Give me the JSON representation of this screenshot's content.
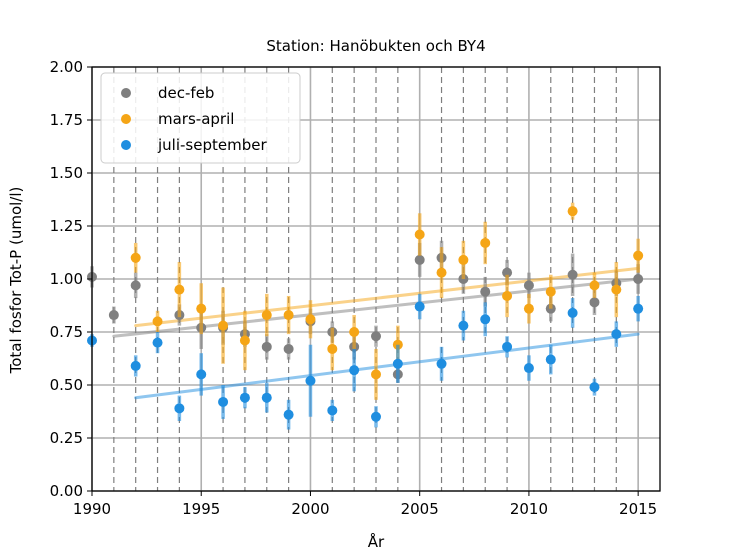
{
  "chart_data": {
    "type": "scatter",
    "title": "Station: Hanöbukten och BY4",
    "xlabel": "År",
    "ylabel": "Total fosfor Tot-P (umol/l)",
    "xlim": [
      1990,
      2016
    ],
    "ylim": [
      0,
      2.0
    ],
    "xticks": [
      1990,
      1995,
      2000,
      2005,
      2010,
      2015
    ],
    "yticks": [
      0.0,
      0.25,
      0.5,
      0.75,
      1.0,
      1.25,
      1.5,
      1.75,
      2.0
    ],
    "xtick_labels": [
      "1990",
      "1995",
      "2000",
      "2005",
      "2010",
      "2015"
    ],
    "ytick_labels": [
      "0.00",
      "0.25",
      "0.50",
      "0.75",
      "1.00",
      "1.25",
      "1.50",
      "1.75",
      "2.00"
    ],
    "vertical_dashed_years": [
      1991,
      1992,
      1993,
      1994,
      1996,
      1997,
      1998,
      1999,
      2001,
      2002,
      2003,
      2004,
      2006,
      2007,
      2008,
      2009,
      2011,
      2012,
      2013,
      2014
    ],
    "grid": true,
    "legend_position": "top-left",
    "series": [
      {
        "name": "dec-feb",
        "color": "#7f7f7f",
        "x": [
          1990,
          1991,
          1992,
          1994,
          1995,
          1996,
          1997,
          1998,
          1999,
          2000,
          2001,
          2002,
          2003,
          2004,
          2005,
          2006,
          2007,
          2008,
          2009,
          2010,
          2011,
          2012,
          2013,
          2014,
          2015
        ],
        "y": [
          1.01,
          0.83,
          0.97,
          0.83,
          0.77,
          0.77,
          0.74,
          0.68,
          0.67,
          0.8,
          0.75,
          0.68,
          0.73,
          0.55,
          1.09,
          1.1,
          1.0,
          0.94,
          1.03,
          0.97,
          0.86,
          1.02,
          0.89,
          0.98,
          1.0
        ],
        "err": [
          0.05,
          0.04,
          0.06,
          0.05,
          0.1,
          0.08,
          0.06,
          0.06,
          0.05,
          0.06,
          0.05,
          0.06,
          0.05,
          0.04,
          0.08,
          0.08,
          0.07,
          0.07,
          0.06,
          0.06,
          0.06,
          0.1,
          0.06,
          0.06,
          0.07
        ],
        "trend": [
          1991,
          0.73,
          2015,
          1.0
        ]
      },
      {
        "name": "mars-april",
        "color": "#f5a516",
        "x": [
          1992,
          1993,
          1994,
          1995,
          1996,
          1997,
          1998,
          1999,
          2000,
          2001,
          2002,
          2003,
          2004,
          2005,
          2006,
          2007,
          2008,
          2009,
          2010,
          2011,
          2012,
          2013,
          2014,
          2015
        ],
        "y": [
          1.1,
          0.8,
          0.95,
          0.86,
          0.78,
          0.71,
          0.83,
          0.83,
          0.81,
          0.67,
          0.75,
          0.55,
          0.69,
          1.21,
          1.03,
          1.09,
          1.17,
          0.92,
          0.86,
          0.94,
          1.32,
          0.97,
          0.95,
          1.11
        ],
        "err": [
          0.07,
          0.05,
          0.13,
          0.12,
          0.18,
          0.14,
          0.1,
          0.09,
          0.09,
          0.1,
          0.08,
          0.12,
          0.09,
          0.1,
          0.12,
          0.09,
          0.1,
          0.1,
          0.07,
          0.08,
          0.04,
          0.06,
          0.13,
          0.08
        ],
        "trend": [
          1992,
          0.78,
          2015,
          1.05
        ]
      },
      {
        "name": "juli-september",
        "color": "#1f8ee0",
        "x": [
          1990,
          1992,
          1993,
          1994,
          1995,
          1996,
          1997,
          1998,
          1999,
          2000,
          2001,
          2002,
          2003,
          2004,
          2005,
          2006,
          2007,
          2008,
          2009,
          2010,
          2011,
          2012,
          2013,
          2014,
          2015
        ],
        "y": [
          0.71,
          0.59,
          0.7,
          0.39,
          0.55,
          0.42,
          0.44,
          0.44,
          0.36,
          0.52,
          0.38,
          0.57,
          0.35,
          0.6,
          0.87,
          0.6,
          0.78,
          0.81,
          0.68,
          0.58,
          0.62,
          0.84,
          0.49,
          0.74,
          0.86
        ],
        "err": [
          0.03,
          0.05,
          0.05,
          0.06,
          0.1,
          0.08,
          0.05,
          0.07,
          0.07,
          0.17,
          0.05,
          0.1,
          0.05,
          0.09,
          0.06,
          0.08,
          0.07,
          0.08,
          0.05,
          0.06,
          0.07,
          0.07,
          0.04,
          0.06,
          0.06
        ],
        "trend": [
          1992,
          0.44,
          2015,
          0.74
        ]
      }
    ]
  }
}
